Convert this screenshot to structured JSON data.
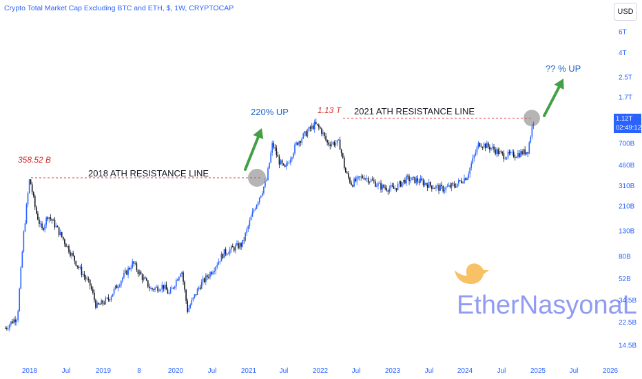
{
  "header": {
    "title": "Crypto Total Market Cap Excluding BTC and ETH, $, 1W, CRYPTOCAP",
    "currency_button": "USD"
  },
  "price_tag": {
    "value": "1.12T",
    "countdown": "02:49:12"
  },
  "colors": {
    "candle_up": "#2962ff",
    "candle_down": "#131722",
    "resistance_line": "#e53935",
    "arrow": "#43a047",
    "axis_text": "#2962ff",
    "watermark": "#6c7cf0",
    "bird_icon": "#f5a623"
  },
  "annotations": {
    "ath_2018_value": "358.52 B",
    "ath_2018_line": "2018 ATH RESISTANCE LINE",
    "ath_2021_value": "1.13 T",
    "ath_2021_line": "2021 ATH RESISTANCE LINE",
    "up_2021": "220% UP",
    "up_next": "?? % UP"
  },
  "watermark": {
    "text": "EtherNasyonaL",
    "icon": "bird-icon"
  },
  "chart_data": {
    "type": "candlestick",
    "scale": "log",
    "y_ticks": [
      "6T",
      "4T",
      "2.5T",
      "1.7T",
      "700B",
      "460B",
      "310B",
      "210B",
      "130B",
      "80B",
      "52B",
      "34.5B",
      "22.5B",
      "14.5B"
    ],
    "x_ticks": [
      "2018",
      "Jul",
      "2019",
      "8",
      "2020",
      "Jul",
      "2021",
      "Jul",
      "2022",
      "Jul",
      "2023",
      "Jul",
      "2024",
      "Jul",
      "2025",
      "Jul",
      "2026"
    ],
    "resistance_levels": [
      {
        "label": "2018 ATH RESISTANCE LINE",
        "value_billion": 358.52
      },
      {
        "label": "2021 ATH RESISTANCE LINE",
        "value_billion": 1130
      }
    ],
    "price_path_billion": [
      [
        "2017-09",
        20
      ],
      [
        "2017-11",
        25
      ],
      [
        "2017-12",
        120
      ],
      [
        "2018-01",
        358
      ],
      [
        "2018-02",
        190
      ],
      [
        "2018-03",
        130
      ],
      [
        "2018-04",
        175
      ],
      [
        "2018-05",
        150
      ],
      [
        "2018-07",
        100
      ],
      [
        "2018-09",
        65
      ],
      [
        "2018-11",
        45
      ],
      [
        "2018-12",
        30
      ],
      [
        "2019-02",
        35
      ],
      [
        "2019-04",
        50
      ],
      [
        "2019-06",
        70
      ],
      [
        "2019-07",
        58
      ],
      [
        "2019-09",
        42
      ],
      [
        "2019-11",
        45
      ],
      [
        "2019-12",
        38
      ],
      [
        "2020-02",
        62
      ],
      [
        "2020-03",
        28
      ],
      [
        "2020-05",
        45
      ],
      [
        "2020-07",
        60
      ],
      [
        "2020-09",
        85
      ],
      [
        "2020-11",
        95
      ],
      [
        "2020-12",
        100
      ],
      [
        "2021-02",
        200
      ],
      [
        "2021-04",
        340
      ],
      [
        "2021-05",
        700
      ],
      [
        "2021-06",
        500
      ],
      [
        "2021-07",
        420
      ],
      [
        "2021-09",
        700
      ],
      [
        "2021-11",
        900
      ],
      [
        "2021-12",
        1000
      ],
      [
        "2022-01",
        900
      ],
      [
        "2022-02",
        700
      ],
      [
        "2022-04",
        700
      ],
      [
        "2022-05",
        400
      ],
      [
        "2022-06",
        320
      ],
      [
        "2022-08",
        370
      ],
      [
        "2022-11",
        300
      ],
      [
        "2023-01",
        290
      ],
      [
        "2023-03",
        350
      ],
      [
        "2023-05",
        340
      ],
      [
        "2023-07",
        310
      ],
      [
        "2023-09",
        290
      ],
      [
        "2023-11",
        310
      ],
      [
        "2024-01",
        370
      ],
      [
        "2024-03",
        700
      ],
      [
        "2024-05",
        640
      ],
      [
        "2024-07",
        550
      ],
      [
        "2024-09",
        560
      ],
      [
        "2024-11",
        600
      ],
      [
        "2024-12",
        1120
      ]
    ]
  }
}
